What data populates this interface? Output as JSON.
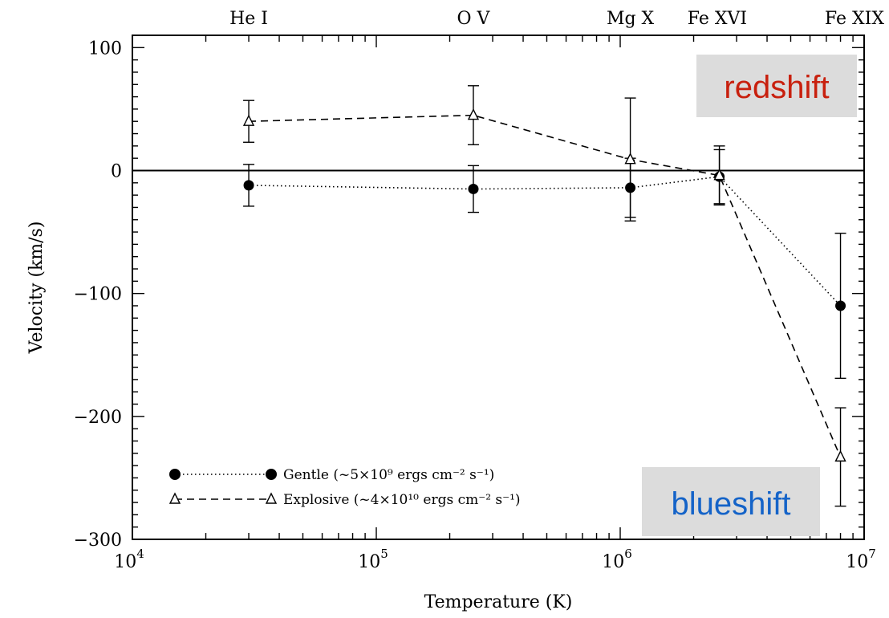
{
  "chart_data": {
    "type": "line",
    "xlabel": "Temperature (K)",
    "ylabel": "Velocity (km/s)",
    "x_scale": "log",
    "xlim": [
      10000,
      10000000
    ],
    "ylim": [
      -300,
      110
    ],
    "x_tick_labels": [
      {
        "value": 10000,
        "base": "10",
        "exp": "4"
      },
      {
        "value": 100000,
        "base": "10",
        "exp": "5"
      },
      {
        "value": 1000000,
        "base": "10",
        "exp": "6"
      },
      {
        "value": 10000000,
        "base": "10",
        "exp": "7"
      }
    ],
    "y_ticks": [
      {
        "value": 100,
        "label": "100"
      },
      {
        "value": 0,
        "label": "0"
      },
      {
        "value": -100,
        "label": "−100"
      },
      {
        "value": -200,
        "label": "−200"
      },
      {
        "value": -300,
        "label": "−300"
      }
    ],
    "top_labels": [
      {
        "x": 30000,
        "label": "He I"
      },
      {
        "x": 250000,
        "label": "O V"
      },
      {
        "x": 1100000,
        "label": "Mg X"
      },
      {
        "x": 2500000,
        "label": "Fe XVI"
      },
      {
        "x": 8000000,
        "label": "Fe XIX"
      }
    ],
    "zero_line": 0,
    "series": [
      {
        "name": "Gentle (~5×10⁹ ergs cm⁻² s⁻¹)",
        "marker": "filled-circle",
        "line": "dotted",
        "x": [
          30000,
          250000,
          1100000,
          2550000,
          8000000
        ],
        "y": [
          -12,
          -15,
          -14,
          -5,
          -110
        ],
        "yerr": [
          17,
          19,
          24,
          22,
          59
        ]
      },
      {
        "name": "Explosive (~4×10¹⁰ ergs cm⁻² s⁻¹)",
        "marker": "open-triangle",
        "line": "dashed",
        "x": [
          30000,
          250000,
          1100000,
          2550000,
          8000000
        ],
        "y": [
          40,
          45,
          9,
          -4,
          -233
        ],
        "yerr": [
          17,
          24,
          50,
          24,
          40
        ]
      }
    ],
    "legend": {
      "position": "bottom-left",
      "gentle_label": "Gentle (~5×10⁹ ergs cm⁻² s⁻¹)",
      "explosive_label": "Explosive (~4×10¹⁰ ergs cm⁻² s⁻¹)"
    },
    "annotations": [
      {
        "id": "redshift",
        "text": "redshift",
        "color": "#c8200e",
        "background": "#dcdcdc",
        "position": "top-right"
      },
      {
        "id": "blueshift",
        "text": "blueshift",
        "color": "#1463c8",
        "background": "#dcdcdc",
        "position": "bottom-right"
      }
    ]
  }
}
